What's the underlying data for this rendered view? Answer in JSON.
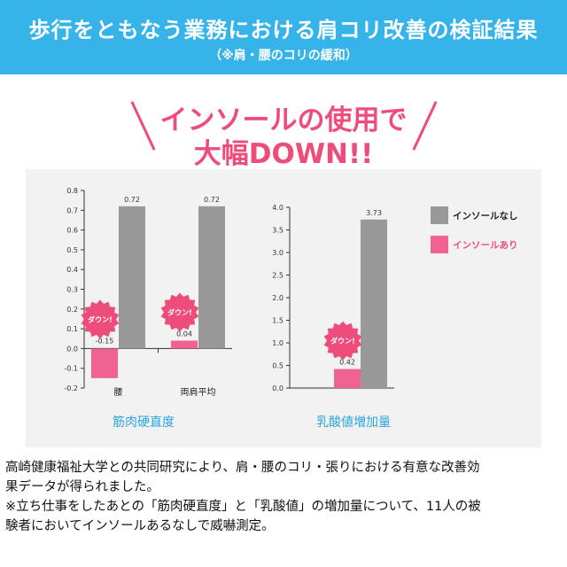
{
  "header": {
    "title": "歩行をともなう業務における肩コリ改善の検証結果",
    "subtitle": "（※肩・腰のコリの緩和）"
  },
  "headline": {
    "line1": "インソールの使用で",
    "line2": "大幅DOWN!!"
  },
  "badge_text": "ダウン!",
  "colors": {
    "header_bg": "#36b4ea",
    "accent_pink": "#ee4d7c",
    "bar_pink": "#f06292",
    "bar_gray": "#999999",
    "chart_title_blue": "#2aa6dc"
  },
  "chart_data": [
    {
      "type": "bar",
      "title": "筋肉硬直度",
      "categories": [
        "腰",
        "両肩平均"
      ],
      "ylim": [
        -0.2,
        0.8
      ],
      "yticks": [
        "0.8",
        "0.7",
        "0.6",
        "0.5",
        "0.4",
        "0.3",
        "0.2",
        "0.1",
        "0.0",
        "-0.1",
        "-0.2"
      ],
      "series": [
        {
          "name": "インソールあり",
          "values": [
            -0.15,
            0.04
          ],
          "labels": [
            "-0.15",
            "0.04"
          ]
        },
        {
          "name": "インソールなし",
          "values": [
            0.72,
            0.72
          ],
          "labels": [
            "0.72",
            "0.72"
          ]
        }
      ]
    },
    {
      "type": "bar",
      "title": "乳酸値増加量",
      "categories": [
        ""
      ],
      "ylim": [
        0.0,
        4.0
      ],
      "yticks": [
        "4.0",
        "3.5",
        "3.0",
        "2.5",
        "2.0",
        "1.5",
        "1.0",
        "0.5",
        "0.0"
      ],
      "series": [
        {
          "name": "インソールあり",
          "values": [
            0.42
          ],
          "labels": [
            "0.42"
          ]
        },
        {
          "name": "インソールなし",
          "values": [
            3.73
          ],
          "labels": [
            "3.73"
          ]
        }
      ]
    }
  ],
  "legend": {
    "items": [
      {
        "label": "インソールなし",
        "color": "#999999"
      },
      {
        "label": "インソールあり",
        "color": "#f06292"
      }
    ]
  },
  "notes": {
    "line1": "高崎健康福祉大学との共同研究により、肩・腰のコリ・張りにおける有意な改善効",
    "line2": "果データが得られました。",
    "line3": "※立ち仕事をしたあとの「筋肉硬直度」と「乳酸値」の増加量について、11人の被",
    "line4": "験者においてインソールあるなしで威嚇測定。"
  }
}
